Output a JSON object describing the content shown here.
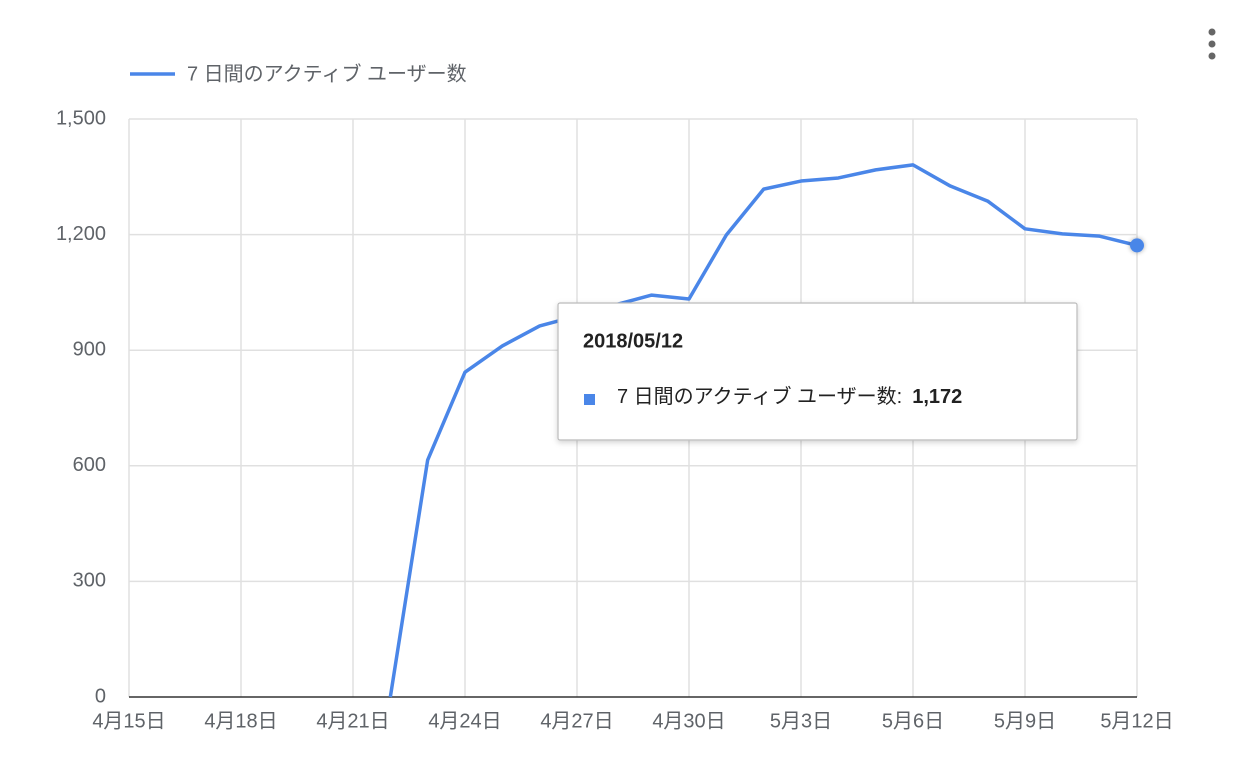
{
  "chart_data": {
    "type": "line",
    "categories": [
      "4月15日",
      null,
      null,
      "4月18日",
      null,
      null,
      "4月21日",
      null,
      null,
      "4月24日",
      null,
      null,
      "4月27日",
      null,
      null,
      "4月30日",
      null,
      null,
      "5月3日",
      null,
      null,
      "5月6日",
      null,
      null,
      "5月9日",
      null,
      null,
      "5月12日"
    ],
    "series": [
      {
        "name": "7 日間のアクティブ ユーザー数",
        "color": "#4a86e8",
        "values": [
          null,
          null,
          null,
          null,
          null,
          null,
          null,
          0,
          615,
          843,
          911,
          963,
          989,
          1017,
          1043,
          1033,
          1199,
          1318,
          1339,
          1347,
          1368,
          1381,
          1326,
          1287,
          1215,
          1202,
          1196,
          1172
        ],
        "value_labels": [
          null,
          null,
          null,
          null,
          null,
          null,
          null,
          null,
          null,
          null,
          null,
          null,
          null,
          null,
          null,
          null,
          null,
          null,
          null,
          null,
          null,
          null,
          null,
          null,
          null,
          null,
          null,
          "1,172"
        ]
      }
    ],
    "ylim": [
      0,
      1500
    ],
    "yticks": [
      0,
      300,
      600,
      900,
      {
        "value": 1200,
        "label": "1,200"
      },
      {
        "value": 1500,
        "label": "1,500"
      }
    ],
    "grid": true,
    "legend": "top-left",
    "tooltip": {
      "title": "2018/05/12",
      "label": "7 日間のアクティブ ユーザー数:"
    }
  }
}
